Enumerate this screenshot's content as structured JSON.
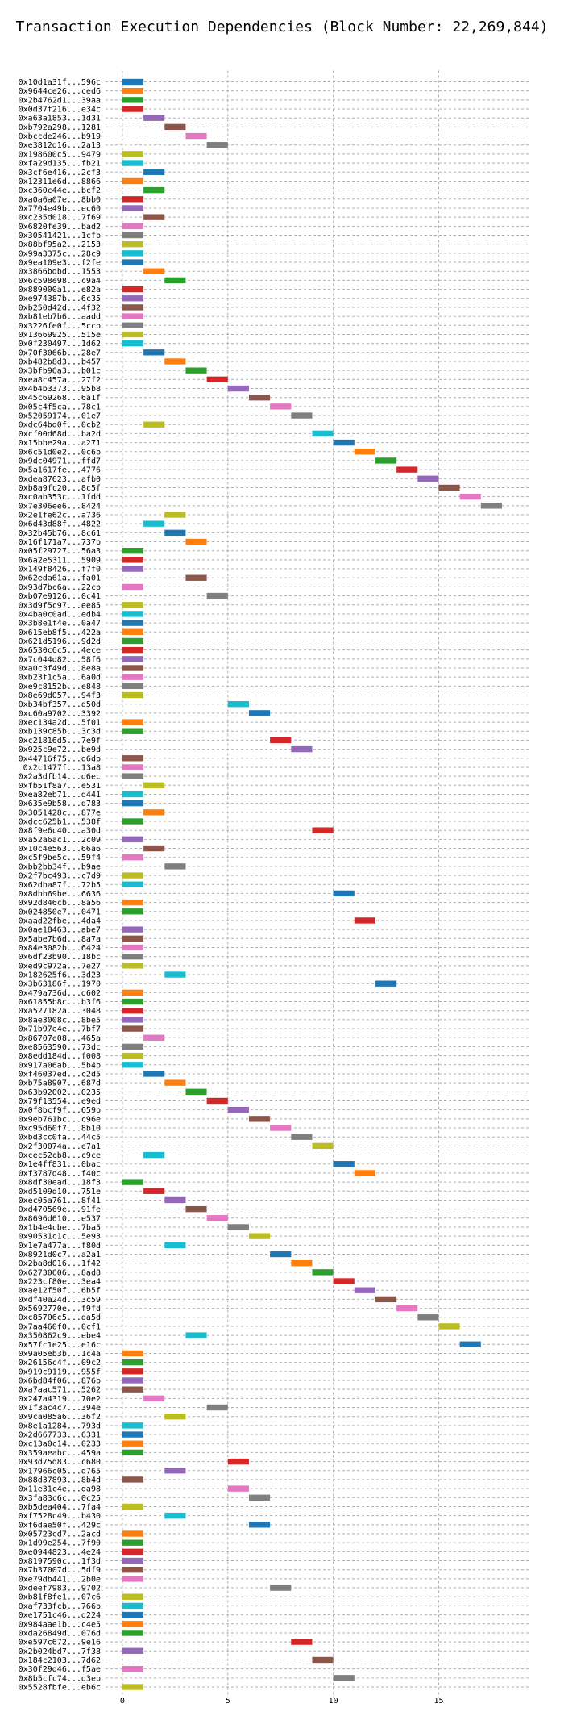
{
  "chart_data": {
    "type": "bar",
    "orientation": "horizontal",
    "title": "Transaction Execution Dependencies (Block Number: 22,269,844)",
    "xlabel": "",
    "ylabel": "",
    "xlim": [
      -0.8,
      19.3
    ],
    "x_ticks": [
      0,
      5,
      10,
      15
    ],
    "grid": true,
    "colors": [
      "#1f77b4",
      "#ff7f0e",
      "#2ca02c",
      "#d62728",
      "#9467bd",
      "#8c564b",
      "#e377c2",
      "#7f7f7f",
      "#bcbd22",
      "#17becf"
    ],
    "transactions": [
      {
        "label": "0x10d1a31f...596c",
        "start": 0
      },
      {
        "label": "0x9644ce26...ced6",
        "start": 0
      },
      {
        "label": "0x2b4762d1...39aa",
        "start": 0
      },
      {
        "label": "0x0d37f216...e34c",
        "start": 0
      },
      {
        "label": "0xa63a1853...1d31",
        "start": 1
      },
      {
        "label": "0xb792a298...1281",
        "start": 2
      },
      {
        "label": "0xbccde246...b919",
        "start": 3
      },
      {
        "label": "0xe3812d16...2a13",
        "start": 4
      },
      {
        "label": "0x198600c5...9479",
        "start": 0
      },
      {
        "label": "0xfa29d135...fb21",
        "start": 0
      },
      {
        "label": "0x3cf6e416...2cf3",
        "start": 1
      },
      {
        "label": "0x12311e6d...8866",
        "start": 0
      },
      {
        "label": "0xc360c44e...bcf2",
        "start": 1
      },
      {
        "label": "0xa0a6a07e...8bb0",
        "start": 0
      },
      {
        "label": "0x7704e49b...ec60",
        "start": 0
      },
      {
        "label": "0xc235d018...7f69",
        "start": 1
      },
      {
        "label": "0x6820fe39...bad2",
        "start": 0
      },
      {
        "label": "0x30541421...1cfb",
        "start": 0
      },
      {
        "label": "0x88bf95a2...2153",
        "start": 0
      },
      {
        "label": "0x99a3375c...28c9",
        "start": 0
      },
      {
        "label": "0x9ea109e3...f2fe",
        "start": 0
      },
      {
        "label": "0x3866bdbd...1553",
        "start": 1
      },
      {
        "label": "0x6c598e98...c9a4",
        "start": 2
      },
      {
        "label": "0x889000a1...e82a",
        "start": 0
      },
      {
        "label": "0xe974387b...6c35",
        "start": 0
      },
      {
        "label": "0xb250d42d...4f32",
        "start": 0
      },
      {
        "label": "0xb81eb7b6...aadd",
        "start": 0
      },
      {
        "label": "0x3226fe0f...5ccb",
        "start": 0
      },
      {
        "label": "0x13669925...515e",
        "start": 0
      },
      {
        "label": "0x0f230497...1d62",
        "start": 0
      },
      {
        "label": "0x70f3066b...28e7",
        "start": 1
      },
      {
        "label": "0xb482b8d3...b457",
        "start": 2
      },
      {
        "label": "0x3bfb96a3...b01c",
        "start": 3
      },
      {
        "label": "0xea8c457a...27f2",
        "start": 4
      },
      {
        "label": "0x4b4b3373...95b8",
        "start": 5
      },
      {
        "label": "0x45c69268...6a1f",
        "start": 6
      },
      {
        "label": "0x05c4f5ca...78c1",
        "start": 7
      },
      {
        "label": "0x52059174...01e7",
        "start": 8
      },
      {
        "label": "0xdc64bd0f...0cb2",
        "start": 1
      },
      {
        "label": "0xcf00d68d...ba2d",
        "start": 9
      },
      {
        "label": "0x15bbe29a...a271",
        "start": 10
      },
      {
        "label": "0x6c51d0e2...0c6b",
        "start": 11
      },
      {
        "label": "0x9dc04971...ffd7",
        "start": 12
      },
      {
        "label": "0x5a1617fe...4776",
        "start": 13
      },
      {
        "label": "0xdea87623...afb0",
        "start": 14
      },
      {
        "label": "0xb8a9fc20...8c5f",
        "start": 15
      },
      {
        "label": "0xc0ab353c...1fdd",
        "start": 16
      },
      {
        "label": "0x7e306ee6...8424",
        "start": 17
      },
      {
        "label": "0x2e1fe62c...a736",
        "start": 2
      },
      {
        "label": "0x6d43d88f...4822",
        "start": 1
      },
      {
        "label": "0x32b45b76...8c61",
        "start": 2
      },
      {
        "label": "0x16f171a7...737b",
        "start": 3
      },
      {
        "label": "0x05f29727...56a3",
        "start": 0
      },
      {
        "label": "0x6a2e5311...5909",
        "start": 0
      },
      {
        "label": "0x149f8426...f7f0",
        "start": 0
      },
      {
        "label": "0x62eda61a...fa01",
        "start": 3
      },
      {
        "label": "0x93d7bc6a...22cb",
        "start": 0
      },
      {
        "label": "0xb07e9126...0c41",
        "start": 4
      },
      {
        "label": "0x3d9f5c97...ee85",
        "start": 0
      },
      {
        "label": "0x4ba0c0ad...edb4",
        "start": 0
      },
      {
        "label": "0x3b8e1f4e...0a47",
        "start": 0
      },
      {
        "label": "0x615eb8f5...422a",
        "start": 0
      },
      {
        "label": "0x621d5196...9d2d",
        "start": 0
      },
      {
        "label": "0x6530c6c5...4ece",
        "start": 0
      },
      {
        "label": "0x7c044d82...58f6",
        "start": 0
      },
      {
        "label": "0xa0c3f49d...8e8a",
        "start": 0
      },
      {
        "label": "0xb23f1c5a...6a0d",
        "start": 0
      },
      {
        "label": "0xe9c8152b...e848",
        "start": 0
      },
      {
        "label": "0x8e69d057...94f3",
        "start": 0
      },
      {
        "label": "0xb34bf357...d50d",
        "start": 5
      },
      {
        "label": "0xc60a9702...3392",
        "start": 6
      },
      {
        "label": "0xec134a2d...5f01",
        "start": 0
      },
      {
        "label": "0xb139c85b...3c3d",
        "start": 0
      },
      {
        "label": "0xc21816d5...7e9f",
        "start": 7
      },
      {
        "label": "0x925c9e72...be9d",
        "start": 8
      },
      {
        "label": "0x44716f75...d6db",
        "start": 0
      },
      {
        "label": "0x2c1477f...13a8",
        "start": 0
      },
      {
        "label": "0x2a3dfb14...d6ec",
        "start": 0
      },
      {
        "label": "0xfb51f8a7...e531",
        "start": 1
      },
      {
        "label": "0xea82eb71...d441",
        "start": 0
      },
      {
        "label": "0x635e9b58...d783",
        "start": 0
      },
      {
        "label": "0x3051428c...877e",
        "start": 1
      },
      {
        "label": "0xdcc625b1...538f",
        "start": 0
      },
      {
        "label": "0x8f9e6c40...a30d",
        "start": 9
      },
      {
        "label": "0xa52a6ac1...2c09",
        "start": 0
      },
      {
        "label": "0x10c4e563...66a6",
        "start": 1
      },
      {
        "label": "0xc5f9be5c...59f4",
        "start": 0
      },
      {
        "label": "0xbb2bb34f...b9ae",
        "start": 2
      },
      {
        "label": "0x2f7bc493...c7d9",
        "start": 0
      },
      {
        "label": "0x62dba87f...72b5",
        "start": 0
      },
      {
        "label": "0x8dbb69be...6636",
        "start": 10
      },
      {
        "label": "0x92d846cb...8a56",
        "start": 0
      },
      {
        "label": "0x024850e7...0471",
        "start": 0
      },
      {
        "label": "0xaad22fbe...4da4",
        "start": 11
      },
      {
        "label": "0x0ae18463...abe7",
        "start": 0
      },
      {
        "label": "0x5abe7b6d...8a7a",
        "start": 0
      },
      {
        "label": "0x84e3082b...6424",
        "start": 0
      },
      {
        "label": "0x6df23b90...18bc",
        "start": 0
      },
      {
        "label": "0xed9c972a...7e27",
        "start": 0
      },
      {
        "label": "0x182625f6...3d23",
        "start": 2
      },
      {
        "label": "0x3b63186f...1970",
        "start": 12
      },
      {
        "label": "0x479a736d...d602",
        "start": 0
      },
      {
        "label": "0x61855b8c...b3f6",
        "start": 0
      },
      {
        "label": "0xa527182a...3048",
        "start": 0
      },
      {
        "label": "0x8ae3008c...8be5",
        "start": 0
      },
      {
        "label": "0x71b97e4e...7bf7",
        "start": 0
      },
      {
        "label": "0x86707e08...465a",
        "start": 1
      },
      {
        "label": "0xe8563590...73dc",
        "start": 0
      },
      {
        "label": "0x8edd184d...f008",
        "start": 0
      },
      {
        "label": "0x917a06ab...5b4b",
        "start": 0
      },
      {
        "label": "0xf46037ed...c2d5",
        "start": 1
      },
      {
        "label": "0xb75a8907...687d",
        "start": 2
      },
      {
        "label": "0x63b92002...0235",
        "start": 3
      },
      {
        "label": "0x79f13554...e9ed",
        "start": 4
      },
      {
        "label": "0x0f8bcf9f...659b",
        "start": 5
      },
      {
        "label": "0x9eb761bc...c96e",
        "start": 6
      },
      {
        "label": "0xc95d60f7...8b10",
        "start": 7
      },
      {
        "label": "0xbd3cc0fa...44c5",
        "start": 8
      },
      {
        "label": "0x2f30074a...e7a1",
        "start": 9
      },
      {
        "label": "0xcec52cb8...c9ce",
        "start": 1
      },
      {
        "label": "0x1e4ff831...0bac",
        "start": 10
      },
      {
        "label": "0xf3787d48...f40c",
        "start": 11
      },
      {
        "label": "0x8df30ead...18f3",
        "start": 0
      },
      {
        "label": "0xd5109d10...751e",
        "start": 1
      },
      {
        "label": "0xec05a761...8f41",
        "start": 2
      },
      {
        "label": "0xd470569e...91fe",
        "start": 3
      },
      {
        "label": "0x8696d610...e537",
        "start": 4
      },
      {
        "label": "0x1b4e4cbe...7ba5",
        "start": 5
      },
      {
        "label": "0x90531c1c...5e93",
        "start": 6
      },
      {
        "label": "0x1e7a477a...f80d",
        "start": 2
      },
      {
        "label": "0x8921d0c7...a2a1",
        "start": 7
      },
      {
        "label": "0x2ba8d016...1f42",
        "start": 8
      },
      {
        "label": "0x62730606...8ad8",
        "start": 9
      },
      {
        "label": "0x223cf80e...3ea4",
        "start": 10
      },
      {
        "label": "0xae12f50f...6b5f",
        "start": 11
      },
      {
        "label": "0xdf40a24d...3c59",
        "start": 12
      },
      {
        "label": "0x5692770e...f9fd",
        "start": 13
      },
      {
        "label": "0xc85706c5...da5d",
        "start": 14
      },
      {
        "label": "0x7aa460f0...0cf1",
        "start": 15
      },
      {
        "label": "0x350862c9...ebe4",
        "start": 3
      },
      {
        "label": "0x57fc1e25...e16c",
        "start": 16
      },
      {
        "label": "0x9a05eb3b...1c4a",
        "start": 0
      },
      {
        "label": "0x26156c4f...09c2",
        "start": 0
      },
      {
        "label": "0x919c9119...955f",
        "start": 0
      },
      {
        "label": "0x6bd84f06...876b",
        "start": 0
      },
      {
        "label": "0xa7aac571...5262",
        "start": 0
      },
      {
        "label": "0x247a4319...70e2",
        "start": 1
      },
      {
        "label": "0x1f3ac4c7...394e",
        "start": 4
      },
      {
        "label": "0x9ca085a6...36f2",
        "start": 2
      },
      {
        "label": "0x8e1a1284...793d",
        "start": 0
      },
      {
        "label": "0x2d667733...6331",
        "start": 0
      },
      {
        "label": "0xc13a0c14...0233",
        "start": 0
      },
      {
        "label": "0x359aeabc...459a",
        "start": 0
      },
      {
        "label": "0x93d75d83...c680",
        "start": 5
      },
      {
        "label": "0x17966c05...d765",
        "start": 2
      },
      {
        "label": "0x88d37893...8b4d",
        "start": 0
      },
      {
        "label": "0x11e31c4e...da98",
        "start": 5
      },
      {
        "label": "0x3fa83c6c...0c25",
        "start": 6
      },
      {
        "label": "0xb5dea404...7fa4",
        "start": 0
      },
      {
        "label": "0xf7528c49...b430",
        "start": 2
      },
      {
        "label": "0xf6dae50f...429c",
        "start": 6
      },
      {
        "label": "0x05723cd7...2acd",
        "start": 0
      },
      {
        "label": "0x1d99e254...7f90",
        "start": 0
      },
      {
        "label": "0xe0944823...4e24",
        "start": 0
      },
      {
        "label": "0x8197590c...1f3d",
        "start": 0
      },
      {
        "label": "0x7b37007d...5df9",
        "start": 0
      },
      {
        "label": "0xe79db441...2b0e",
        "start": 0
      },
      {
        "label": "0xdeef7983...9702",
        "start": 7
      },
      {
        "label": "0xb81f8fe1...07c6",
        "start": 0
      },
      {
        "label": "0xaf733fcb...766b",
        "start": 0
      },
      {
        "label": "0xe1751c46...d224",
        "start": 0
      },
      {
        "label": "0x984aae1b...c4e5",
        "start": 0
      },
      {
        "label": "0xda26849d...076d",
        "start": 0
      },
      {
        "label": "0xe597c672...9e16",
        "start": 8
      },
      {
        "label": "0x2b024bd7...7f38",
        "start": 0
      },
      {
        "label": "0x184c2103...7d62",
        "start": 9
      },
      {
        "label": "0x30f29d46...f5ae",
        "start": 0
      },
      {
        "label": "0x8b5cfc74...d3eb",
        "start": 10
      },
      {
        "label": "0x5528fbfe...eb6c",
        "start": 0
      }
    ]
  }
}
